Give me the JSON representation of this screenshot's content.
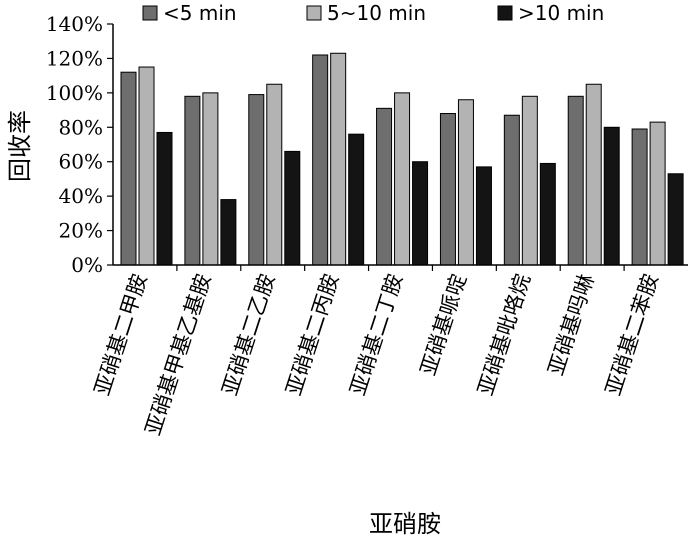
{
  "chart_data": {
    "type": "bar",
    "categories": [
      "亚硝基二甲胺",
      "亚硝基甲基乙基胺",
      "亚硝基二乙胺",
      "亚硝基二丙胺",
      "亚硝基二丁胺",
      "亚硝基哌啶",
      "亚硝基吡咯烷",
      "亚硝基吗啉",
      "亚硝基二苯胺"
    ],
    "series": [
      {
        "name": "<5 min",
        "color": "#6e6e6e",
        "values": [
          112,
          98,
          99,
          122,
          91,
          88,
          87,
          98,
          79
        ]
      },
      {
        "name": "5~10 min",
        "color": "#b3b3b3",
        "values": [
          115,
          100,
          105,
          123,
          100,
          96,
          98,
          105,
          83
        ]
      },
      {
        "name": ">10 min",
        "color": "#141414",
        "values": [
          77,
          38,
          66,
          76,
          60,
          57,
          59,
          80,
          53
        ]
      }
    ],
    "ylim": [
      0,
      140
    ],
    "yticks": [
      0,
      20,
      40,
      60,
      80,
      100,
      120,
      140
    ],
    "ytick_labels": [
      "0%",
      "20%",
      "40%",
      "60%",
      "80%",
      "100%",
      "120%",
      "140%"
    ],
    "ylabel": "回收率",
    "xlabel": "亚硝胺",
    "legend_position": "top",
    "grid": false
  }
}
